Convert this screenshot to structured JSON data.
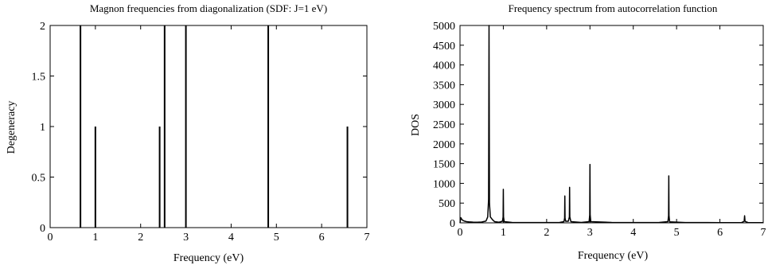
{
  "chart_data": [
    {
      "type": "bar",
      "title": "Magnon frequencies from diagonalization (SDF: J=1 eV)",
      "xlabel": "Frequency (eV)",
      "ylabel": "Degeneracy",
      "xlim": [
        0,
        7
      ],
      "ylim": [
        0,
        2
      ],
      "xticks": [
        "0",
        "1",
        "2",
        "3",
        "4",
        "5",
        "6",
        "7"
      ],
      "yticks": [
        "0",
        "0.5",
        "1",
        "1.5",
        "2"
      ],
      "grid": false,
      "series": [
        {
          "x": [
            0.67,
            1.0,
            2.42,
            2.53,
            3.0,
            4.82,
            6.57
          ],
          "values": [
            2,
            1,
            1,
            2,
            2,
            2,
            1
          ]
        }
      ]
    },
    {
      "type": "line",
      "title": "Frequency spectrum from autocorrelation function",
      "xlabel": "Frequency (eV)",
      "ylabel": "DOS",
      "xlim": [
        0,
        7
      ],
      "ylim": [
        0,
        5000
      ],
      "xticks": [
        "0",
        "1",
        "2",
        "3",
        "4",
        "5",
        "6",
        "7"
      ],
      "yticks": [
        "0",
        "500",
        "1000",
        "1500",
        "2000",
        "2500",
        "3000",
        "3500",
        "4000",
        "4500",
        "5000"
      ],
      "grid": false,
      "series": [
        {
          "x": [
            0.0,
            0.02,
            0.04,
            0.07,
            0.1,
            0.15,
            0.2,
            0.3,
            0.4,
            0.5,
            0.6,
            0.64,
            0.66,
            0.67,
            0.68,
            0.7,
            0.75,
            0.8,
            0.9,
            0.98,
            0.995,
            1.0,
            1.005,
            1.02,
            1.2,
            1.5,
            2.0,
            2.3,
            2.4,
            2.415,
            2.42,
            2.425,
            2.44,
            2.5,
            2.525,
            2.53,
            2.535,
            2.56,
            2.8,
            2.98,
            2.995,
            3.0,
            3.005,
            3.02,
            3.5,
            4.0,
            4.6,
            4.8,
            4.815,
            4.82,
            4.825,
            4.84,
            5.2,
            6.0,
            6.5,
            6.56,
            6.57,
            6.58,
            6.65,
            7.0
          ],
          "values": [
            0,
            130,
            90,
            60,
            45,
            30,
            25,
            18,
            15,
            20,
            45,
            150,
            600,
            5000,
            500,
            150,
            80,
            30,
            15,
            40,
            150,
            850,
            150,
            30,
            10,
            8,
            8,
            10,
            30,
            120,
            680,
            120,
            40,
            40,
            150,
            900,
            150,
            30,
            10,
            30,
            200,
            1480,
            200,
            30,
            10,
            8,
            10,
            30,
            180,
            1190,
            180,
            25,
            8,
            6,
            6,
            40,
            180,
            40,
            6,
            5
          ]
        }
      ]
    }
  ]
}
